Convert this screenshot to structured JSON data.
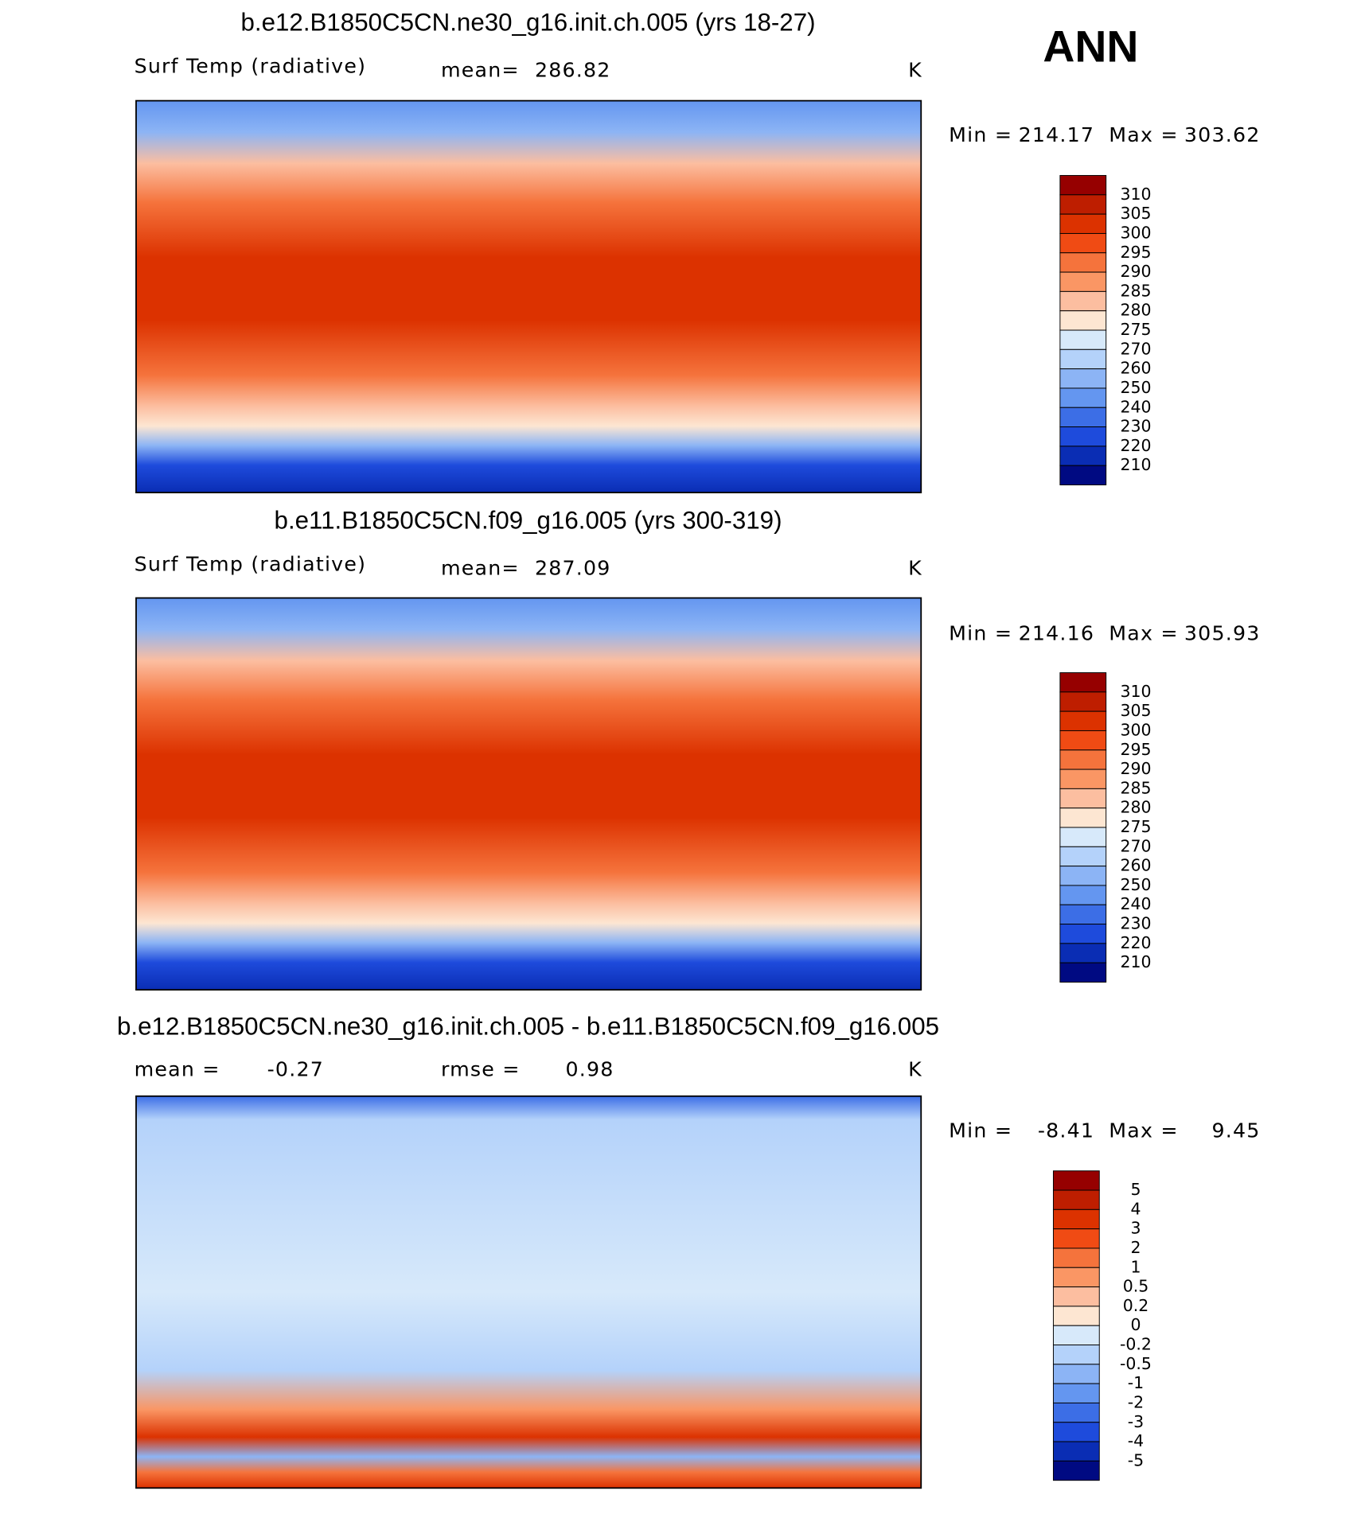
{
  "header": {
    "season": "ANN"
  },
  "panels": [
    {
      "title": "b.e12.B1850C5CN.ne30_g16.init.ch.005 (yrs 18-27)",
      "variable": "Surf Temp (radiative)",
      "stats": [
        {
          "label": "mean=",
          "value": 286.82
        }
      ],
      "units": "K",
      "min_label": "Min =",
      "min": 214.17,
      "max_label": "Max =",
      "max": 303.62,
      "colorbar": {
        "levels": [
          310,
          305,
          300,
          295,
          290,
          285,
          280,
          275,
          270,
          260,
          250,
          240,
          230,
          220,
          210
        ],
        "colors": [
          "#960000",
          "#be1e00",
          "#dc3200",
          "#f04b14",
          "#f5733c",
          "#fa9664",
          "#fcbea0",
          "#fde6d2",
          "#d7e9fa",
          "#b4d2fa",
          "#8cb4f5",
          "#6496f0",
          "#3c6ee6",
          "#1e4bdc",
          "#0a2db4",
          "#000a82"
        ]
      }
    },
    {
      "title": "b.e11.B1850C5CN.f09_g16.005 (yrs 300-319)",
      "variable": "Surf Temp (radiative)",
      "stats": [
        {
          "label": "mean=",
          "value": 287.09
        }
      ],
      "units": "K",
      "min_label": "Min =",
      "min": 214.16,
      "max_label": "Max =",
      "max": 305.93,
      "colorbar": {
        "levels": [
          310,
          305,
          300,
          295,
          290,
          285,
          280,
          275,
          270,
          260,
          250,
          240,
          230,
          220,
          210
        ],
        "colors": [
          "#960000",
          "#be1e00",
          "#dc3200",
          "#f04b14",
          "#f5733c",
          "#fa9664",
          "#fcbea0",
          "#fde6d2",
          "#d7e9fa",
          "#b4d2fa",
          "#8cb4f5",
          "#6496f0",
          "#3c6ee6",
          "#1e4bdc",
          "#0a2db4",
          "#000a82"
        ]
      }
    },
    {
      "title": "b.e12.B1850C5CN.ne30_g16.init.ch.005 - b.e11.B1850C5CN.f09_g16.005",
      "stats": [
        {
          "label": "mean =",
          "value": -0.27
        },
        {
          "label": "rmse =",
          "value": 0.98
        }
      ],
      "units": "K",
      "min_label": "Min =",
      "min": -8.41,
      "max_label": "Max =",
      "max": 9.45,
      "colorbar": {
        "levels": [
          5,
          4,
          3,
          2,
          1,
          0.5,
          0.2,
          0,
          -0.2,
          -0.5,
          -1,
          -2,
          -3,
          -4,
          -5
        ],
        "colors": [
          "#960000",
          "#be1e00",
          "#dc3200",
          "#f04b14",
          "#f5733c",
          "#fa9664",
          "#fcbea0",
          "#fde6d2",
          "#d7e9fa",
          "#b4d2fa",
          "#8cb4f5",
          "#6496f0",
          "#3c6ee6",
          "#1e4bdc",
          "#0a2db4",
          "#000a82"
        ]
      }
    }
  ]
}
